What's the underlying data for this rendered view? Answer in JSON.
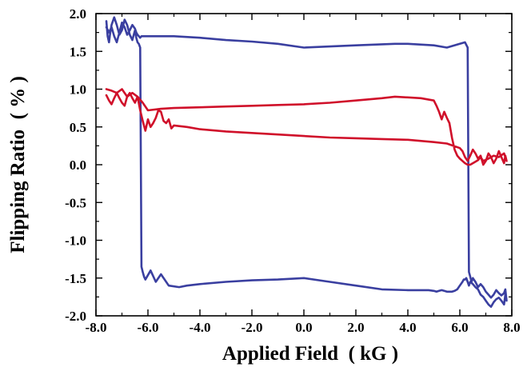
{
  "chart_data": {
    "type": "line",
    "xlabel": "Applied Field  ( kG )",
    "ylabel": "Flipping Ratio  ( % )",
    "xlim": [
      -8.0,
      8.0
    ],
    "ylim": [
      -2.0,
      2.0
    ],
    "x_ticks": [
      -8.0,
      -6.0,
      -4.0,
      -2.0,
      0.0,
      2.0,
      4.0,
      6.0,
      8.0
    ],
    "y_ticks": [
      2.0,
      1.5,
      1.0,
      0.5,
      0.0,
      -0.5,
      -1.0,
      -1.5,
      -2.0
    ],
    "x_tick_labels": [
      "-8.0",
      "-6.0",
      "-4.0",
      "-2.0",
      "0.0",
      "2.0",
      "4.0",
      "6.0",
      "8.0"
    ],
    "y_tick_labels": [
      "2.0",
      "1.5",
      "1.0",
      "0.5",
      "0.0",
      "-0.5",
      "-1.0",
      "-1.5",
      "-2.0"
    ],
    "grid": false,
    "series": [
      {
        "color": "#3a3fa0",
        "x": [
          -7.6,
          -7.55,
          -7.5,
          -7.45,
          -7.4,
          -7.3,
          -7.2,
          -7.1,
          -7.0,
          -6.9,
          -6.8,
          -6.7,
          -6.6,
          -6.5,
          -6.45,
          -6.4,
          -6.35,
          -6.3,
          -6.25,
          -6.2,
          -6.15,
          -6.1,
          -5.9,
          -5.7,
          -5.5,
          -5.2,
          -4.8,
          -4.5,
          -4.0,
          -3.0,
          -2.0,
          -1.0,
          0.0,
          1.0,
          2.0,
          3.0,
          4.0,
          4.8,
          5.0,
          5.1,
          5.2,
          5.3,
          5.4,
          5.5,
          5.6,
          5.7,
          5.8,
          5.9,
          6.0,
          6.1,
          6.15,
          6.2,
          6.25,
          6.3,
          6.35,
          6.4,
          6.5,
          6.6,
          6.7,
          6.8,
          6.9,
          7.0,
          7.1,
          7.2,
          7.3,
          7.4,
          7.5,
          7.6,
          7.7,
          7.75,
          7.8,
          7.75,
          7.7,
          7.6,
          7.5,
          7.4,
          7.3,
          7.2,
          7.1,
          7.0,
          6.9,
          6.8,
          6.7,
          6.6,
          6.5,
          6.45,
          6.4,
          6.35,
          6.3,
          6.2,
          6.0,
          5.5,
          5.0,
          4.0,
          3.5,
          2.0,
          0.0,
          -1.0,
          -2.0,
          -3.0,
          -4.0,
          -5.0,
          -5.2,
          -5.3,
          -5.4,
          -5.5,
          -5.6,
          -5.7,
          -5.8,
          -5.9,
          -6.0,
          -6.1,
          -6.15,
          -6.2,
          -6.25,
          -6.3,
          -6.35,
          -6.4,
          -6.45,
          -6.5,
          -6.6,
          -6.7,
          -6.8,
          -6.9,
          -7.0,
          -7.1,
          -7.2,
          -7.3,
          -7.4,
          -7.5,
          -7.6
        ],
        "y": [
          1.9,
          1.7,
          1.62,
          1.75,
          1.85,
          1.95,
          1.85,
          1.72,
          1.78,
          1.92,
          1.85,
          1.72,
          1.65,
          1.78,
          1.68,
          1.62,
          1.6,
          1.55,
          -1.35,
          -1.42,
          -1.48,
          -1.52,
          -1.4,
          -1.55,
          -1.45,
          -1.6,
          -1.62,
          -1.6,
          -1.58,
          -1.55,
          -1.53,
          -1.52,
          -1.5,
          -1.55,
          -1.6,
          -1.65,
          -1.66,
          -1.66,
          -1.67,
          -1.68,
          -1.67,
          -1.66,
          -1.67,
          -1.68,
          -1.68,
          -1.68,
          -1.67,
          -1.65,
          -1.6,
          -1.55,
          -1.52,
          -1.52,
          -1.5,
          -1.55,
          -1.6,
          -1.55,
          -1.58,
          -1.62,
          -1.65,
          -1.72,
          -1.75,
          -1.8,
          -1.85,
          -1.88,
          -1.82,
          -1.78,
          -1.76,
          -1.8,
          -1.85,
          -1.72,
          -1.8,
          -1.65,
          -1.7,
          -1.73,
          -1.7,
          -1.66,
          -1.72,
          -1.76,
          -1.72,
          -1.68,
          -1.62,
          -1.58,
          -1.62,
          -1.55,
          -1.5,
          -1.55,
          -1.48,
          -1.42,
          1.55,
          1.62,
          1.6,
          1.55,
          1.58,
          1.6,
          1.6,
          1.58,
          1.55,
          1.6,
          1.63,
          1.65,
          1.68,
          1.7,
          1.7,
          1.7,
          1.7,
          1.7,
          1.7,
          1.7,
          1.7,
          1.7,
          1.7,
          1.7,
          1.7,
          1.7,
          1.7,
          1.68,
          1.7,
          1.72,
          1.75,
          1.8,
          1.85,
          1.78,
          1.72,
          1.82,
          1.88,
          1.75,
          1.62,
          1.7,
          1.82,
          1.75,
          1.82
        ]
      },
      {
        "color": "#d0102a",
        "x": [
          -7.6,
          -7.5,
          -7.4,
          -7.3,
          -7.2,
          -7.1,
          -7.0,
          -6.9,
          -6.8,
          -6.7,
          -6.6,
          -6.5,
          -6.4,
          -6.3,
          -6.2,
          -6.1,
          -6.0,
          -5.9,
          -5.8,
          -5.7,
          -5.6,
          -5.5,
          -5.4,
          -5.3,
          -5.2,
          -5.1,
          -5.0,
          -4.5,
          -4.0,
          -3.0,
          -2.0,
          -1.0,
          0.0,
          1.0,
          2.0,
          3.0,
          4.0,
          5.0,
          5.5,
          6.0,
          6.1,
          6.2,
          6.3,
          6.4,
          6.5,
          6.6,
          6.7,
          6.8,
          6.9,
          7.0,
          7.1,
          7.2,
          7.3,
          7.4,
          7.5,
          7.6,
          7.7,
          7.75,
          7.8,
          7.7,
          7.5,
          7.3,
          7.1,
          6.9,
          6.8,
          6.7,
          6.6,
          6.5,
          6.4,
          6.3,
          6.2,
          6.1,
          6.0,
          5.9,
          5.8,
          5.7,
          5.6,
          5.5,
          5.4,
          5.3,
          5.2,
          5.1,
          5.0,
          4.5,
          3.5,
          3.0,
          2.0,
          1.0,
          0.0,
          -1.0,
          -2.0,
          -3.0,
          -4.0,
          -5.0,
          -5.5,
          -6.0,
          -6.2,
          -6.4,
          -6.6,
          -6.8,
          -7.0,
          -7.2,
          -7.4,
          -7.6
        ],
        "y": [
          0.92,
          0.85,
          0.8,
          0.88,
          0.95,
          0.88,
          0.82,
          0.78,
          0.9,
          0.95,
          0.88,
          0.82,
          0.9,
          0.72,
          0.58,
          0.45,
          0.6,
          0.5,
          0.55,
          0.62,
          0.72,
          0.7,
          0.58,
          0.55,
          0.6,
          0.48,
          0.52,
          0.5,
          0.47,
          0.44,
          0.42,
          0.4,
          0.38,
          0.36,
          0.35,
          0.34,
          0.33,
          0.3,
          0.28,
          0.22,
          0.18,
          0.1,
          0.05,
          0.12,
          0.2,
          0.15,
          0.08,
          0.12,
          0.0,
          0.05,
          0.15,
          0.1,
          0.02,
          0.08,
          0.18,
          0.1,
          0.02,
          0.12,
          0.05,
          0.15,
          0.1,
          0.12,
          0.08,
          0.05,
          0.1,
          0.06,
          0.04,
          0.02,
          0.0,
          0.0,
          0.02,
          0.05,
          0.08,
          0.12,
          0.2,
          0.35,
          0.55,
          0.62,
          0.7,
          0.6,
          0.7,
          0.78,
          0.85,
          0.88,
          0.9,
          0.88,
          0.85,
          0.82,
          0.8,
          0.79,
          0.78,
          0.77,
          0.76,
          0.75,
          0.74,
          0.72,
          0.82,
          0.9,
          0.95,
          0.9,
          1.0,
          0.95,
          0.98,
          1.0
        ]
      }
    ]
  }
}
